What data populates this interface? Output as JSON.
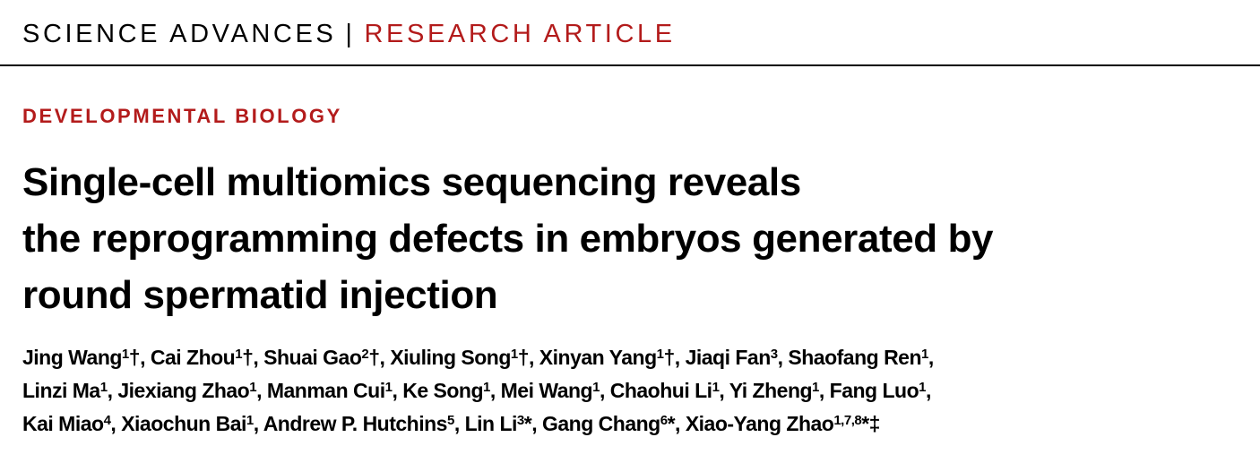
{
  "masthead": {
    "journal": "SCIENCE ADVANCES",
    "separator": "|",
    "type": "RESEARCH ARTICLE"
  },
  "section": "DEVELOPMENTAL BIOLOGY",
  "title_lines": [
    "Single-cell multiomics sequencing reveals",
    "the reprogramming defects in embryos generated by",
    "round spermatid injection"
  ],
  "author_lines": [
    [
      {
        "name": "Jing Wang",
        "sup": "1",
        "mark": "†"
      },
      {
        "name": "Cai Zhou",
        "sup": "1",
        "mark": "†"
      },
      {
        "name": "Shuai Gao",
        "sup": "2",
        "mark": "†"
      },
      {
        "name": "Xiuling Song",
        "sup": "1",
        "mark": "†"
      },
      {
        "name": "Xinyan Yang",
        "sup": "1",
        "mark": "†"
      },
      {
        "name": "Jiaqi Fan",
        "sup": "3",
        "mark": ""
      },
      {
        "name": "Shaofang Ren",
        "sup": "1",
        "mark": ""
      }
    ],
    [
      {
        "name": "Linzi Ma",
        "sup": "1",
        "mark": ""
      },
      {
        "name": "Jiexiang Zhao",
        "sup": "1",
        "mark": ""
      },
      {
        "name": "Manman Cui",
        "sup": "1",
        "mark": ""
      },
      {
        "name": "Ke Song",
        "sup": "1",
        "mark": ""
      },
      {
        "name": "Mei Wang",
        "sup": "1",
        "mark": ""
      },
      {
        "name": "Chaohui Li",
        "sup": "1",
        "mark": ""
      },
      {
        "name": "Yi Zheng",
        "sup": "1",
        "mark": ""
      },
      {
        "name": "Fang Luo",
        "sup": "1",
        "mark": ""
      }
    ],
    [
      {
        "name": "Kai Miao",
        "sup": "4",
        "mark": ""
      },
      {
        "name": "Xiaochun Bai",
        "sup": "1",
        "mark": ""
      },
      {
        "name": "Andrew P. Hutchins",
        "sup": "5",
        "mark": ""
      },
      {
        "name": "Lin Li",
        "sup": "3",
        "mark": "*"
      },
      {
        "name": "Gang Chang",
        "sup": "6",
        "mark": "*"
      },
      {
        "name": "Xiao-Yang Zhao",
        "sup": "1,7,8",
        "mark": "*‡"
      }
    ]
  ],
  "colors": {
    "accent": "#b31b1b",
    "text": "#000000"
  }
}
